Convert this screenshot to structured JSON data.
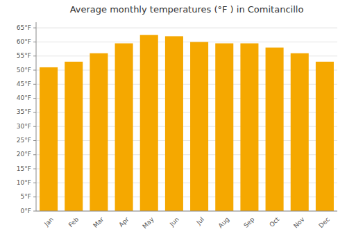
{
  "chart_data": {
    "type": "bar",
    "title": "Average monthly temperatures (°F ) in Comitancillo",
    "categories": [
      "Jan",
      "Feb",
      "Mar",
      "Apr",
      "May",
      "Jun",
      "Jul",
      "Aug",
      "Sep",
      "Oct",
      "Nov",
      "Dec"
    ],
    "values": [
      51,
      53,
      56,
      59.5,
      62.5,
      62,
      60,
      59.5,
      59.5,
      58,
      56,
      53
    ],
    "color": "#F5A800",
    "ylim": [
      0,
      67
    ],
    "yticks": [
      {
        "value": 0,
        "label": "0°F"
      },
      {
        "value": 5,
        "label": "5°F"
      },
      {
        "value": 10,
        "label": "10°F"
      },
      {
        "value": 15,
        "label": "15°F"
      },
      {
        "value": 20,
        "label": "20°F"
      },
      {
        "value": 25,
        "label": "25°F"
      },
      {
        "value": 30,
        "label": "30°F"
      },
      {
        "value": 35,
        "label": "35°F"
      },
      {
        "value": 40,
        "label": "40°F"
      },
      {
        "value": 45,
        "label": "45°F"
      },
      {
        "value": 50,
        "label": "50°F"
      },
      {
        "value": 55,
        "label": "55°F"
      },
      {
        "value": 60,
        "label": "60°F"
      },
      {
        "value": 65,
        "label": "65°F"
      }
    ],
    "grid": true
  }
}
